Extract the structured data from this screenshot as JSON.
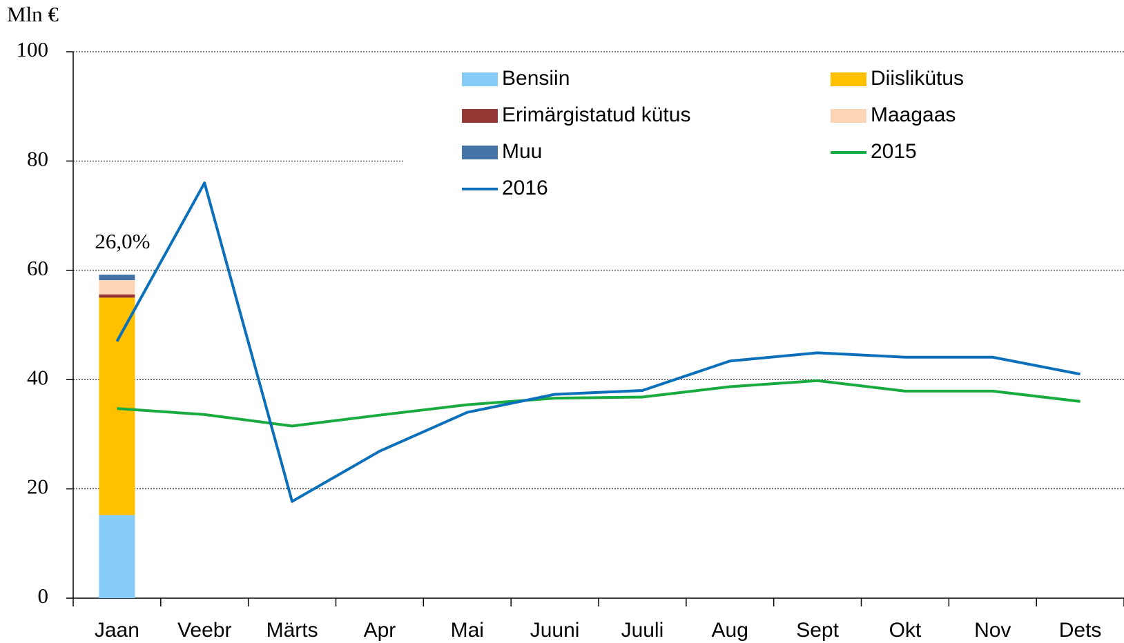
{
  "chart_data": {
    "type": "bar-line",
    "y_label": "Mln €",
    "annotation": "26,0%",
    "categories": [
      "Jaan",
      "Veebr",
      "Märts",
      "Apr",
      "Mai",
      "Juuni",
      "Juuli",
      "Aug",
      "Sept",
      "Okt",
      "Nov",
      "Dets"
    ],
    "series": [
      {
        "name": "Bensiin",
        "type": "bar",
        "color": "#87cbf9",
        "values": [
          15.2,
          null,
          null,
          null,
          null,
          null,
          null,
          null,
          null,
          null,
          null,
          null
        ]
      },
      {
        "name": "Diislikütus",
        "type": "bar",
        "color": "#ffc000",
        "values": [
          39.8,
          null,
          null,
          null,
          null,
          null,
          null,
          null,
          null,
          null,
          null,
          null
        ]
      },
      {
        "name": "Erimärgistatud kütus",
        "type": "bar",
        "color": "#953735",
        "values": [
          0.6,
          null,
          null,
          null,
          null,
          null,
          null,
          null,
          null,
          null,
          null,
          null
        ]
      },
      {
        "name": "Maagaas",
        "type": "bar",
        "color": "#fcd5b5",
        "values": [
          2.6,
          null,
          null,
          null,
          null,
          null,
          null,
          null,
          null,
          null,
          null,
          null
        ]
      },
      {
        "name": "Muu",
        "type": "bar",
        "color": "#4572a7",
        "values": [
          1.0,
          null,
          null,
          null,
          null,
          null,
          null,
          null,
          null,
          null,
          null,
          null
        ]
      },
      {
        "name": "2015",
        "type": "line",
        "color": "#1aab40",
        "values": [
          34.7,
          33.6,
          31.5,
          33.5,
          35.4,
          36.6,
          36.8,
          38.7,
          39.8,
          37.9,
          37.9,
          36.0
        ]
      },
      {
        "name": "2016",
        "type": "line",
        "color": "#0b6fba",
        "values": [
          47.0,
          76.0,
          17.7,
          26.9,
          34.0,
          37.3,
          38.0,
          43.4,
          44.9,
          44.1,
          44.1,
          41.0
        ]
      }
    ],
    "ylim": [
      0,
      100
    ],
    "yticks": [
      0,
      20,
      40,
      60,
      80,
      100
    ],
    "grid": true
  }
}
